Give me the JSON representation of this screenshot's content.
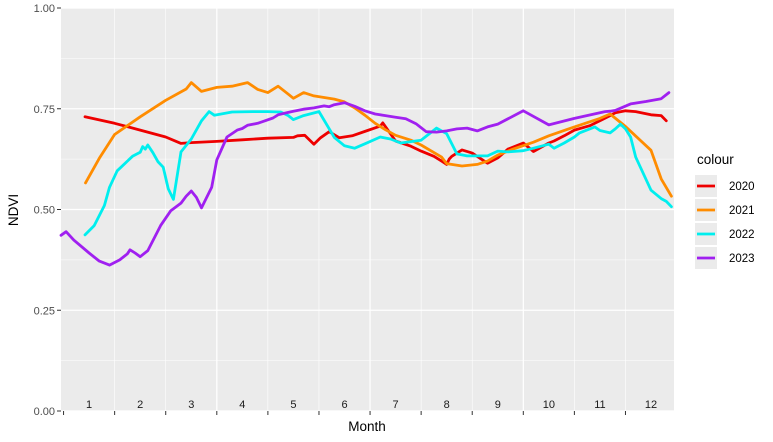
{
  "chart_data": {
    "type": "line",
    "xlabel": "Month",
    "ylabel": "NDVI",
    "xlim": [
      0.45,
      12.45
    ],
    "ylim": [
      0,
      1
    ],
    "y_ticks": [
      "0.00",
      "0.25",
      "0.50",
      "0.75",
      "1.00"
    ],
    "y_tick_values": [
      0,
      0.25,
      0.5,
      0.75,
      1.0
    ],
    "month_labels": [
      "1",
      "2",
      "3",
      "4",
      "5",
      "6",
      "7",
      "8",
      "9",
      "10",
      "11",
      "12"
    ],
    "grid": true,
    "legend": {
      "title": "colour",
      "position": "right"
    },
    "series": [
      {
        "name": "2020",
        "color": "#ee0000",
        "x": [
          0.92,
          1.5,
          2.0,
          2.5,
          2.8,
          3.0,
          3.5,
          4.0,
          4.5,
          5.0,
          5.08,
          5.22,
          5.4,
          5.53,
          5.7,
          5.9,
          6.15,
          6.45,
          6.7,
          6.75,
          7.0,
          7.3,
          7.5,
          7.75,
          7.9,
          8.0,
          8.05,
          8.1,
          8.3,
          8.5,
          8.8,
          9.0,
          9.2,
          9.5,
          9.7,
          10.0,
          10.1,
          10.3,
          10.5,
          10.8,
          11.0,
          11.2,
          11.3,
          11.5,
          11.7,
          12.0,
          12.2,
          12.3
        ],
        "values": [
          0.73,
          0.714,
          0.697,
          0.68,
          0.664,
          0.666,
          0.669,
          0.673,
          0.677,
          0.679,
          0.683,
          0.684,
          0.662,
          0.678,
          0.693,
          0.678,
          0.683,
          0.696,
          0.707,
          0.715,
          0.67,
          0.657,
          0.645,
          0.632,
          0.62,
          0.612,
          0.625,
          0.632,
          0.648,
          0.64,
          0.615,
          0.628,
          0.65,
          0.665,
          0.644,
          0.665,
          0.67,
          0.683,
          0.697,
          0.708,
          0.72,
          0.733,
          0.74,
          0.745,
          0.743,
          0.735,
          0.733,
          0.72
        ]
      },
      {
        "name": "2021",
        "color": "#ff8c00",
        "x": [
          0.93,
          1.2,
          1.5,
          2.0,
          2.5,
          2.9,
          3.0,
          3.2,
          3.5,
          3.8,
          4.1,
          4.3,
          4.5,
          4.7,
          4.9,
          5.0,
          5.2,
          5.4,
          5.6,
          5.8,
          6.0,
          6.2,
          6.4,
          6.6,
          6.8,
          7.0,
          7.3,
          7.5,
          7.7,
          7.9,
          8.0,
          8.3,
          8.6,
          8.8,
          9.0,
          9.3,
          9.7,
          10.0,
          10.5,
          11.0,
          11.2,
          11.5,
          12.0,
          12.2,
          12.4
        ],
        "values": [
          0.566,
          0.627,
          0.686,
          0.73,
          0.771,
          0.799,
          0.815,
          0.793,
          0.803,
          0.806,
          0.815,
          0.798,
          0.79,
          0.806,
          0.786,
          0.776,
          0.79,
          0.782,
          0.778,
          0.774,
          0.767,
          0.752,
          0.734,
          0.714,
          0.698,
          0.684,
          0.672,
          0.66,
          0.645,
          0.63,
          0.614,
          0.608,
          0.612,
          0.62,
          0.635,
          0.65,
          0.667,
          0.683,
          0.705,
          0.726,
          0.737,
          0.706,
          0.647,
          0.576,
          0.533
        ]
      },
      {
        "name": "2022",
        "color": "#00eeee",
        "x": [
          0.92,
          1.1,
          1.3,
          1.4,
          1.55,
          1.75,
          1.85,
          2.0,
          2.05,
          2.1,
          2.15,
          2.25,
          2.35,
          2.45,
          2.55,
          2.65,
          2.8,
          3.0,
          3.2,
          3.35,
          3.45,
          3.8,
          4.2,
          4.5,
          4.75,
          4.9,
          5.0,
          5.2,
          5.5,
          5.8,
          6.0,
          6.2,
          6.4,
          6.7,
          6.9,
          7.1,
          7.5,
          7.7,
          7.8,
          8.0,
          8.2,
          8.4,
          8.6,
          8.8,
          9.0,
          9.2,
          9.5,
          9.7,
          10.0,
          10.1,
          10.3,
          10.5,
          10.6,
          10.8,
          10.9,
          11.0,
          11.2,
          11.3,
          11.4,
          11.5,
          11.6,
          11.7,
          12.0,
          12.2,
          12.3,
          12.4
        ],
        "values": [
          0.437,
          0.46,
          0.51,
          0.555,
          0.596,
          0.62,
          0.632,
          0.642,
          0.656,
          0.65,
          0.66,
          0.641,
          0.618,
          0.605,
          0.551,
          0.525,
          0.643,
          0.675,
          0.72,
          0.743,
          0.734,
          0.742,
          0.743,
          0.743,
          0.742,
          0.733,
          0.723,
          0.733,
          0.743,
          0.679,
          0.658,
          0.652,
          0.663,
          0.68,
          0.675,
          0.665,
          0.672,
          0.692,
          0.702,
          0.688,
          0.638,
          0.633,
          0.633,
          0.633,
          0.645,
          0.643,
          0.646,
          0.652,
          0.662,
          0.652,
          0.665,
          0.68,
          0.69,
          0.7,
          0.705,
          0.696,
          0.69,
          0.7,
          0.712,
          0.7,
          0.68,
          0.63,
          0.548,
          0.527,
          0.52,
          0.507
        ]
      },
      {
        "name": "2023",
        "color": "#a020f0",
        "x": [
          0.45,
          0.55,
          0.7,
          1.0,
          1.2,
          1.4,
          1.6,
          1.75,
          1.8,
          1.9,
          2.0,
          2.15,
          2.4,
          2.6,
          2.8,
          2.9,
          3.0,
          3.1,
          3.2,
          3.4,
          3.5,
          3.7,
          3.9,
          4.0,
          4.1,
          4.3,
          4.4,
          4.6,
          4.7,
          4.9,
          5.0,
          5.2,
          5.4,
          5.6,
          5.7,
          5.8,
          6.0,
          6.2,
          6.4,
          6.6,
          6.8,
          7.0,
          7.2,
          7.4,
          7.6,
          7.8,
          8.0,
          8.2,
          8.4,
          8.6,
          8.8,
          9.0,
          9.5,
          10.0,
          10.5,
          11.0,
          11.1,
          11.2,
          11.3,
          11.6,
          11.9,
          12.2,
          12.35
        ],
        "values": [
          0.436,
          0.445,
          0.424,
          0.392,
          0.372,
          0.362,
          0.375,
          0.39,
          0.4,
          0.392,
          0.383,
          0.398,
          0.46,
          0.497,
          0.516,
          0.533,
          0.546,
          0.53,
          0.504,
          0.555,
          0.623,
          0.68,
          0.697,
          0.701,
          0.709,
          0.714,
          0.718,
          0.727,
          0.735,
          0.741,
          0.744,
          0.749,
          0.752,
          0.757,
          0.755,
          0.76,
          0.765,
          0.756,
          0.745,
          0.737,
          0.733,
          0.729,
          0.725,
          0.713,
          0.693,
          0.692,
          0.695,
          0.7,
          0.702,
          0.695,
          0.705,
          0.712,
          0.745,
          0.71,
          0.726,
          0.74,
          0.743,
          0.744,
          0.746,
          0.762,
          0.768,
          0.775,
          0.79
        ]
      }
    ]
  }
}
